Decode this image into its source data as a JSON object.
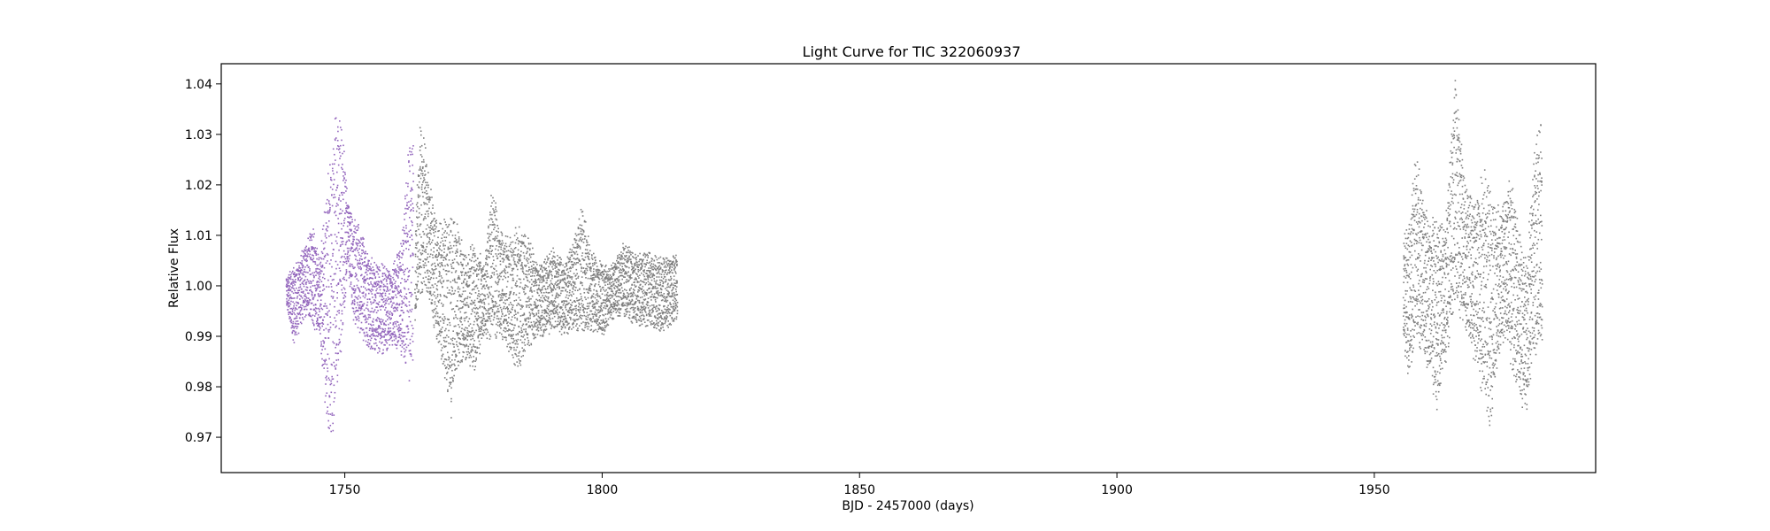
{
  "chart_data": {
    "type": "scatter",
    "title": "Light Curve for TIC 322060937",
    "xlabel": "BJD - 2457000 (days)",
    "ylabel": "Relative Flux",
    "xlim": [
      1726,
      1993
    ],
    "ylim": [
      0.963,
      1.044
    ],
    "xticks": [
      {
        "value": 1750,
        "label": "1750"
      },
      {
        "value": 1800,
        "label": "1800"
      },
      {
        "value": 1850,
        "label": "1850"
      },
      {
        "value": 1900,
        "label": "1900"
      },
      {
        "value": 1950,
        "label": "1950"
      }
    ],
    "yticks": [
      {
        "value": 0.97,
        "label": "0.97"
      },
      {
        "value": 0.98,
        "label": "0.98"
      },
      {
        "value": 0.99,
        "label": "0.99"
      },
      {
        "value": 1.0,
        "label": "1.00"
      },
      {
        "value": 1.01,
        "label": "1.01"
      },
      {
        "value": 1.02,
        "label": "1.02"
      },
      {
        "value": 1.03,
        "label": "1.03"
      },
      {
        "value": 1.04,
        "label": "1.04"
      }
    ],
    "grid": false,
    "series": [
      {
        "color": "#9467bd",
        "segments": [
          {
            "x_range": [
              1738.5,
              1763.2
            ],
            "envelope": [
              [
                1738.5,
                0.996,
                1.002
              ],
              [
                1740.0,
                0.988,
                1.004
              ],
              [
                1742.0,
                0.994,
                1.008
              ],
              [
                1743.5,
                0.992,
                1.013
              ],
              [
                1745.0,
                0.99,
                1.006
              ],
              [
                1746.5,
                0.969,
                1.022
              ],
              [
                1747.5,
                0.967,
                1.033
              ],
              [
                1748.5,
                0.978,
                1.037
              ],
              [
                1749.5,
                0.99,
                1.032
              ],
              [
                1750.5,
                1.003,
                1.018
              ],
              [
                1751.5,
                0.993,
                1.014
              ],
              [
                1753.0,
                0.99,
                1.012
              ],
              [
                1755.0,
                0.987,
                1.006
              ],
              [
                1757.0,
                0.986,
                1.005
              ],
              [
                1759.0,
                0.988,
                1.004
              ],
              [
                1761.0,
                0.986,
                1.01
              ],
              [
                1762.5,
                0.98,
                1.033
              ],
              [
                1763.2,
                0.985,
                1.03
              ]
            ]
          }
        ]
      },
      {
        "color": "#7f7f7f",
        "segments": [
          {
            "x_range": [
              1763.5,
              1814.5
            ],
            "envelope": [
              [
                1763.5,
                0.992,
                1.01
              ],
              [
                1764.5,
                0.996,
                1.033
              ],
              [
                1765.5,
                1.0,
                1.028
              ],
              [
                1766.5,
                0.993,
                1.02
              ],
              [
                1768.0,
                0.988,
                1.012
              ],
              [
                1769.5,
                0.98,
                1.015
              ],
              [
                1770.5,
                0.973,
                1.016
              ],
              [
                1772.0,
                0.983,
                1.012
              ],
              [
                1773.5,
                0.985,
                1.006
              ],
              [
                1775.0,
                0.982,
                1.01
              ],
              [
                1777.0,
                0.99,
                1.005
              ],
              [
                1778.5,
                0.989,
                1.021
              ],
              [
                1780.0,
                0.99,
                1.012
              ],
              [
                1782.0,
                0.986,
                1.01
              ],
              [
                1783.5,
                0.983,
                1.013
              ],
              [
                1785.5,
                0.988,
                1.01
              ],
              [
                1787.5,
                0.989,
                1.005
              ],
              [
                1790.5,
                0.991,
                1.008
              ],
              [
                1792.5,
                0.99,
                1.005
              ],
              [
                1794.5,
                0.991,
                1.01
              ],
              [
                1796.0,
                0.99,
                1.017
              ],
              [
                1797.5,
                0.991,
                1.008
              ],
              [
                1800.0,
                0.99,
                1.005
              ],
              [
                1801.5,
                0.993,
                1.004
              ],
              [
                1804.0,
                0.994,
                1.009
              ],
              [
                1806.5,
                0.992,
                1.007
              ],
              [
                1809.0,
                0.992,
                1.007
              ],
              [
                1811.5,
                0.991,
                1.006
              ],
              [
                1814.5,
                0.993,
                1.007
              ]
            ]
          },
          {
            "x_range": [
              1955.5,
              1982.5
            ],
            "envelope": [
              [
                1955.5,
                0.988,
                1.01
              ],
              [
                1956.5,
                0.981,
                1.012
              ],
              [
                1957.5,
                0.985,
                1.024
              ],
              [
                1958.0,
                0.99,
                1.027
              ],
              [
                1959.5,
                0.985,
                1.018
              ],
              [
                1961.0,
                0.98,
                1.015
              ],
              [
                1962.0,
                0.974,
                1.016
              ],
              [
                1963.5,
                0.983,
                1.012
              ],
              [
                1964.5,
                0.988,
                1.025
              ],
              [
                1965.5,
                0.995,
                1.042
              ],
              [
                1966.5,
                0.993,
                1.034
              ],
              [
                1967.5,
                0.99,
                1.022
              ],
              [
                1969.0,
                0.986,
                1.018
              ],
              [
                1970.0,
                0.981,
                1.02
              ],
              [
                1971.5,
                0.976,
                1.025
              ],
              [
                1972.5,
                0.97,
                1.02
              ],
              [
                1973.5,
                0.981,
                1.018
              ],
              [
                1974.5,
                0.987,
                1.015
              ],
              [
                1975.5,
                0.99,
                1.02
              ],
              [
                1976.5,
                0.983,
                1.023
              ],
              [
                1978.0,
                0.978,
                1.011
              ],
              [
                1979.5,
                0.973,
                1.006
              ],
              [
                1980.5,
                0.985,
                1.022
              ],
              [
                1981.5,
                0.984,
                1.032
              ],
              [
                1982.5,
                0.986,
                1.033
              ]
            ]
          }
        ]
      }
    ]
  }
}
